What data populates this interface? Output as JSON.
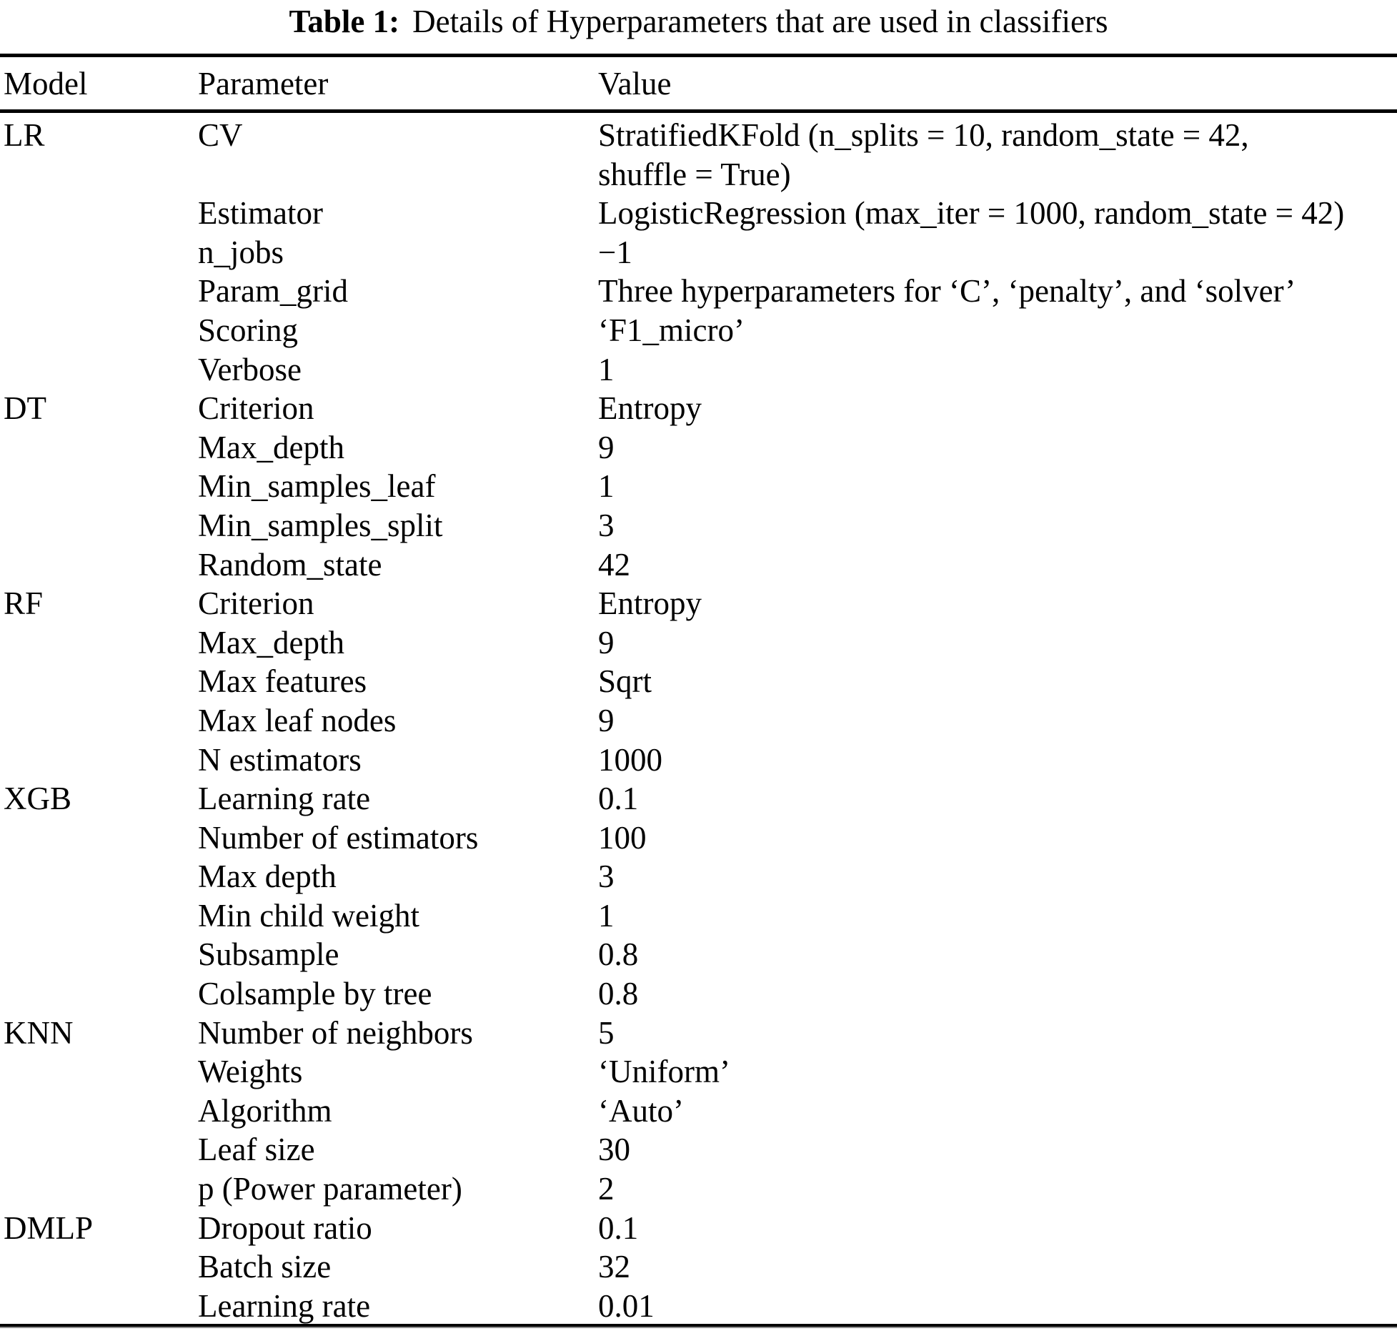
{
  "caption": {
    "label": "Table 1:",
    "text": "Details of Hyperparameters that are used in classifiers"
  },
  "table": {
    "columns": {
      "model": "Model",
      "parameter": "Parameter",
      "value": "Value"
    },
    "sections": [
      {
        "model": "LR",
        "rows": [
          {
            "param": "CV",
            "value": "StratifiedKFold (n_splits = 10, random_state = 42,\nshuffle = True)"
          },
          {
            "param": "Estimator",
            "value": "LogisticRegression (max_iter = 1000, random_state = 42)"
          },
          {
            "param": "n_jobs",
            "value": "−1"
          },
          {
            "param": "Param_grid",
            "value": "Three hyperparameters for ‘C’, ‘penalty’, and ‘solver’"
          },
          {
            "param": "Scoring",
            "value": "‘F1_micro’"
          },
          {
            "param": "Verbose",
            "value": "1"
          }
        ]
      },
      {
        "model": "DT",
        "rows": [
          {
            "param": "Criterion",
            "value": "Entropy"
          },
          {
            "param": "Max_depth",
            "value": "9"
          },
          {
            "param": "Min_samples_leaf",
            "value": "1"
          },
          {
            "param": "Min_samples_split",
            "value": "3"
          },
          {
            "param": "Random_state",
            "value": "42"
          }
        ]
      },
      {
        "model": "RF",
        "rows": [
          {
            "param": "Criterion",
            "value": "Entropy"
          },
          {
            "param": "Max_depth",
            "value": "9"
          },
          {
            "param": "Max features",
            "value": "Sqrt"
          },
          {
            "param": "Max leaf nodes",
            "value": "9"
          },
          {
            "param": "N estimators",
            "value": "1000"
          }
        ]
      },
      {
        "model": "XGB",
        "rows": [
          {
            "param": "Learning rate",
            "value": "0.1"
          },
          {
            "param": "Number of estimators",
            "value": "100"
          },
          {
            "param": "Max depth",
            "value": "3"
          },
          {
            "param": "Min child weight",
            "value": "1"
          },
          {
            "param": "Subsample",
            "value": "0.8"
          },
          {
            "param": "Colsample by tree",
            "value": "0.8"
          }
        ]
      },
      {
        "model": "KNN",
        "rows": [
          {
            "param": "Number of neighbors",
            "value": "5"
          },
          {
            "param": "Weights",
            "value": "‘Uniform’"
          },
          {
            "param": "Algorithm",
            "value": "‘Auto’"
          },
          {
            "param": "Leaf size",
            "value": "30"
          },
          {
            "param": "p (Power parameter)",
            "value": "2"
          }
        ]
      },
      {
        "model": "DMLP",
        "rows": [
          {
            "param": "Dropout ratio",
            "value": "0.1"
          },
          {
            "param": "Batch size",
            "value": "32"
          },
          {
            "param": "Learning rate",
            "value": "0.01"
          }
        ]
      }
    ]
  }
}
